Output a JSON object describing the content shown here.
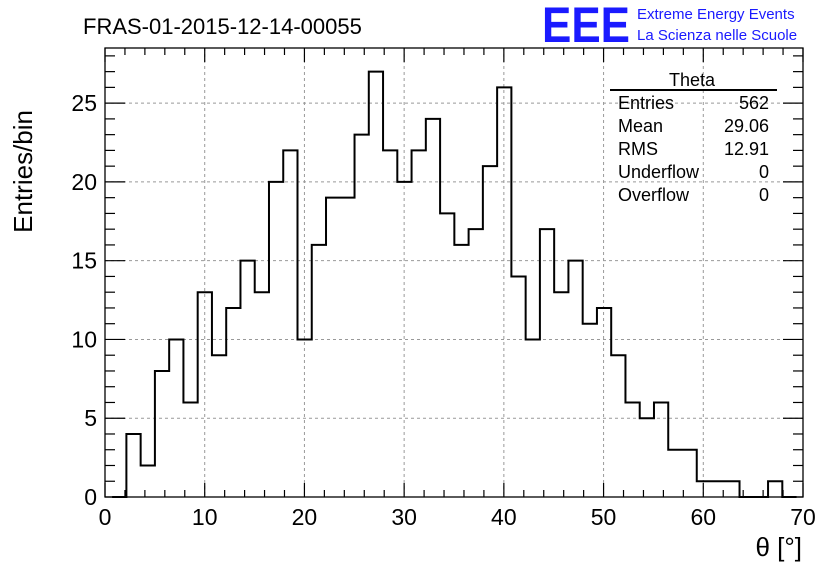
{
  "chart_data": {
    "type": "bar",
    "title": "FRAS-01-2015-12-14-00055",
    "xlabel": "θ [°]",
    "ylabel": "Entries/bin",
    "xlim": [
      0,
      70
    ],
    "ylim": [
      0,
      28.5
    ],
    "x_ticks": [
      "0",
      "10",
      "20",
      "30",
      "40",
      "50",
      "60",
      "70"
    ],
    "y_ticks": [
      "0",
      "5",
      "10",
      "15",
      "20",
      "25"
    ],
    "grid": true,
    "bin_width": 1.43,
    "bin_start": 0.715,
    "values": [
      0,
      4,
      2,
      8,
      10,
      6,
      13,
      9,
      12,
      15,
      13,
      20,
      22,
      10,
      16,
      19,
      19,
      23,
      27,
      22,
      20,
      22,
      24,
      18,
      16,
      17,
      21,
      26,
      14,
      10,
      17,
      13,
      15,
      11,
      12,
      9,
      6,
      5,
      6,
      3,
      3,
      1,
      1,
      1,
      0,
      0,
      1,
      0
    ],
    "stats_box": {
      "name": "Theta",
      "rows": [
        {
          "label": "Entries",
          "value": "562"
        },
        {
          "label": "Mean",
          "value": "29.06"
        },
        {
          "label": "RMS",
          "value": "12.91"
        },
        {
          "label": "Underflow",
          "value": "0"
        },
        {
          "label": "Overflow",
          "value": "0"
        }
      ]
    }
  },
  "logo": {
    "mark": "EEE",
    "line1": "Extreme Energy Events",
    "line2": "La Scienza nelle Scuole"
  },
  "colors": {
    "logo": "#1a1aff",
    "line": "#000000",
    "grid": "#999999"
  }
}
